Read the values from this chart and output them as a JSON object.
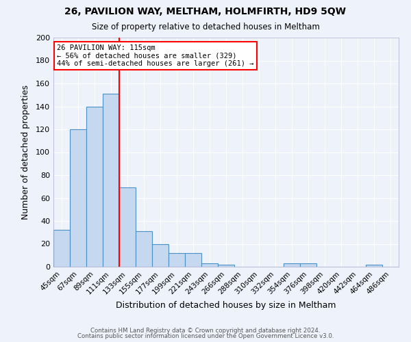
{
  "title1": "26, PAVILION WAY, MELTHAM, HOLMFIRTH, HD9 5QW",
  "title2": "Size of property relative to detached houses in Meltham",
  "xlabel": "Distribution of detached houses by size in Meltham",
  "ylabel": "Number of detached properties",
  "categories": [
    "45sqm",
    "67sqm",
    "89sqm",
    "111sqm",
    "133sqm",
    "155sqm",
    "177sqm",
    "199sqm",
    "221sqm",
    "243sqm",
    "266sqm",
    "288sqm",
    "310sqm",
    "332sqm",
    "354sqm",
    "376sqm",
    "398sqm",
    "420sqm",
    "442sqm",
    "464sqm",
    "486sqm"
  ],
  "values": [
    32,
    120,
    140,
    151,
    69,
    31,
    20,
    12,
    12,
    3,
    2,
    0,
    0,
    0,
    3,
    3,
    0,
    0,
    0,
    2,
    0
  ],
  "bar_color": "#c5d8f0",
  "bar_edge_color": "#4a90c4",
  "bar_width": 1.0,
  "vline_x": 3.5,
  "vline_color": "red",
  "vline_label_title": "26 PAVILION WAY: 115sqm",
  "vline_label_line1": "← 56% of detached houses are smaller (329)",
  "vline_label_line2": "44% of semi-detached houses are larger (261) →",
  "annotation_box_color": "white",
  "annotation_box_edge_color": "red",
  "ylim": [
    0,
    200
  ],
  "yticks": [
    0,
    20,
    40,
    60,
    80,
    100,
    120,
    140,
    160,
    180,
    200
  ],
  "background_color": "#eef2fa",
  "grid_color": "white",
  "footer1": "Contains HM Land Registry data © Crown copyright and database right 2024.",
  "footer2": "Contains public sector information licensed under the Open Government Licence v3.0."
}
